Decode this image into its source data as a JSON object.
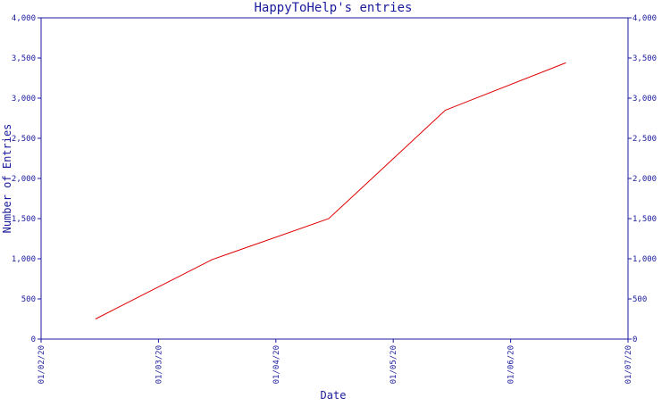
{
  "chart_data": {
    "type": "line",
    "title": "HappyToHelp's entries",
    "xlabel": "Date",
    "ylabel": "Number of Entries",
    "x_tick_labels": [
      "01/02/20",
      "01/03/20",
      "01/04/20",
      "01/05/20",
      "01/06/20",
      "01/07/20"
    ],
    "xlim": [
      "2020-02-01",
      "2020-07-01"
    ],
    "ylim": [
      0,
      4000
    ],
    "y_ticks": [
      0,
      500,
      1000,
      1500,
      2000,
      2500,
      3000,
      3500,
      4000
    ],
    "y_tick_labels": [
      "0",
      "500",
      "1,000",
      "1,500",
      "2,000",
      "2,500",
      "3,000",
      "3,500",
      "4,000"
    ],
    "y_axis_right": true,
    "grid": false,
    "series": [
      {
        "color": "#e00000",
        "x": [
          "2020-02-15",
          "2020-03-16",
          "2020-04-15",
          "2020-05-15",
          "2020-06-15"
        ],
        "values": [
          250,
          990,
          1500,
          2850,
          3440
        ]
      }
    ],
    "axis_color": "#1a1a9c"
  }
}
